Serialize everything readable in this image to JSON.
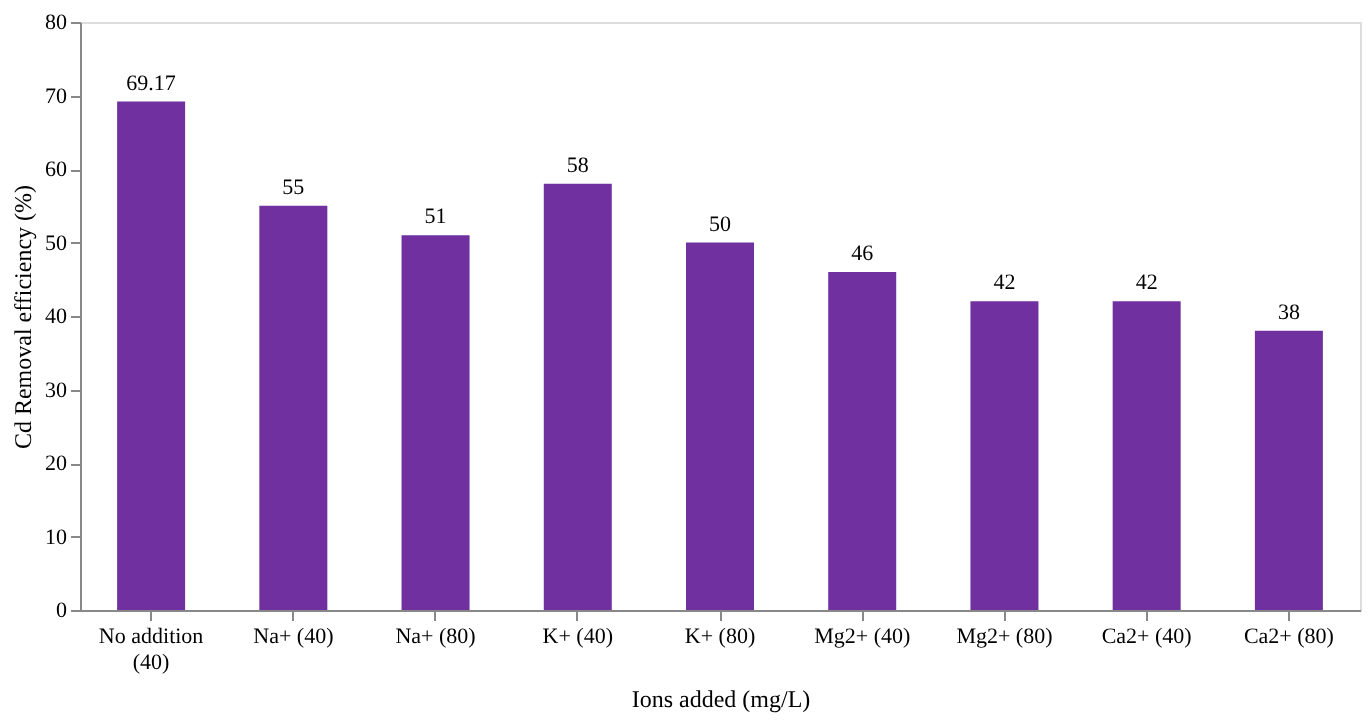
{
  "chart_data": {
    "type": "bar",
    "xlabel": "Ions added (mg/L)",
    "ylabel": "Cd Removal efficiency (%)",
    "categories": [
      "No addition (40)",
      "Na+ (40)",
      "Na+ (80)",
      "K+ (40)",
      "K+ (80)",
      "Mg2+ (40)",
      "Mg2+ (80)",
      "Ca2+ (40)",
      "Ca2+ (80)"
    ],
    "values": [
      69.17,
      55,
      51,
      58,
      50,
      46,
      42,
      42,
      38
    ],
    "color": "#7030a0",
    "ylim": [
      0,
      80
    ],
    "yticks": [
      0,
      10,
      20,
      30,
      40,
      50,
      60,
      70,
      80
    ],
    "grid": false,
    "data_labels": true
  }
}
